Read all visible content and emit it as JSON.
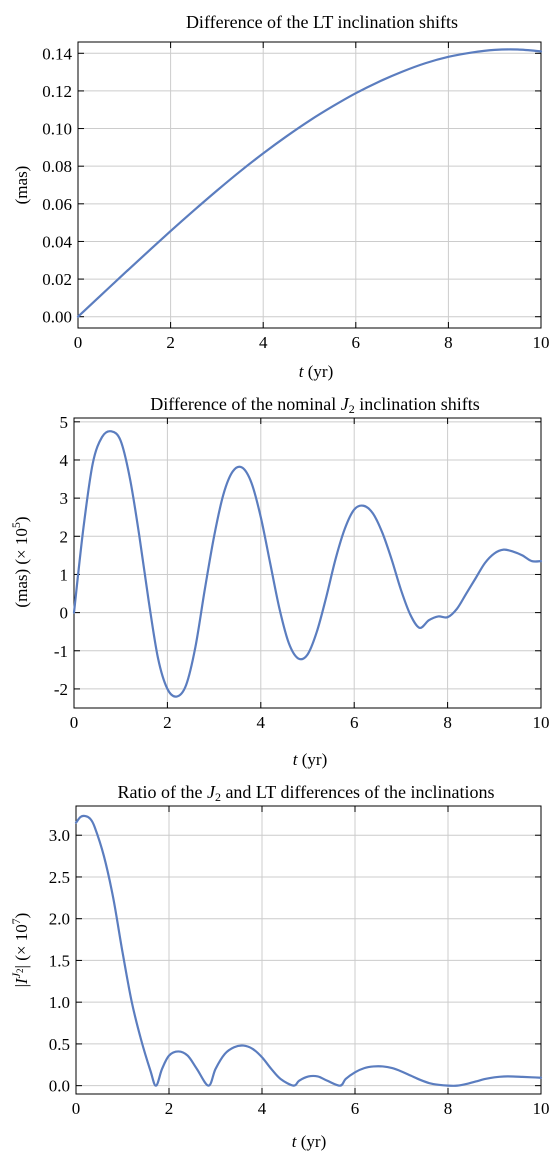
{
  "chart_data": [
    {
      "type": "line",
      "title": "Difference of the LT inclination shifts",
      "xlabel_var": "t",
      "xlabel_unit": " (yr)",
      "ylabel": "(mas)",
      "xlim": [
        0,
        10
      ],
      "ylim": [
        -0.006,
        0.146
      ],
      "xticks": [
        0,
        2,
        4,
        6,
        8,
        10
      ],
      "yticks": [
        0.0,
        0.02,
        0.04,
        0.06,
        0.08,
        0.1,
        0.12,
        0.14
      ],
      "xtick_labels": [
        "0",
        "2",
        "4",
        "6",
        "8",
        "10"
      ],
      "ytick_labels": [
        "0.00",
        "0.02",
        "0.04",
        "0.06",
        "0.08",
        "0.10",
        "0.12",
        "0.14"
      ],
      "grid": true,
      "color": "#5B7DBF",
      "x": [
        0,
        0.5,
        1,
        1.5,
        2,
        2.5,
        3,
        3.5,
        4,
        4.5,
        5,
        5.5,
        6,
        6.5,
        7,
        7.5,
        8,
        8.5,
        9,
        9.5,
        10
      ],
      "y": [
        0.0,
        0.0115,
        0.023,
        0.0343,
        0.0455,
        0.0564,
        0.067,
        0.0772,
        0.0868,
        0.0958,
        0.1042,
        0.1118,
        0.1188,
        0.1249,
        0.1302,
        0.1347,
        0.1381,
        0.1404,
        0.1418,
        0.142,
        0.141
      ]
    },
    {
      "type": "line",
      "title_pre": "Difference of the nominal ",
      "title_var": "J",
      "title_sub": "2",
      "title_post": " inclination shifts",
      "xlabel_var": "t",
      "xlabel_unit": " (yr)",
      "ylabel_pre": "(mas) (× 10",
      "ylabel_sup": "5",
      "ylabel_post": ")",
      "xlim": [
        0,
        10
      ],
      "ylim": [
        -2.5,
        5.1
      ],
      "xticks": [
        0,
        2,
        4,
        6,
        8,
        10
      ],
      "yticks": [
        -2,
        -1,
        0,
        1,
        2,
        3,
        4,
        5
      ],
      "xtick_labels": [
        "0",
        "2",
        "4",
        "6",
        "8",
        "10"
      ],
      "ytick_labels": [
        "-2",
        "-1",
        "0",
        "1",
        "2",
        "3",
        "4",
        "5"
      ],
      "grid": true,
      "color": "#5B7DBF",
      "x": [
        0,
        0.2,
        0.4,
        0.6,
        0.8,
        1.0,
        1.2,
        1.4,
        1.6,
        1.8,
        2.0,
        2.2,
        2.4,
        2.6,
        2.8,
        3.0,
        3.2,
        3.4,
        3.6,
        3.8,
        4.0,
        4.2,
        4.4,
        4.6,
        4.8,
        5.0,
        5.2,
        5.4,
        5.6,
        5.8,
        6.0,
        6.2,
        6.4,
        6.6,
        6.8,
        7.0,
        7.2,
        7.4,
        7.6,
        7.8,
        8.0,
        8.2,
        8.4,
        8.6,
        8.8,
        9.0,
        9.2,
        9.4,
        9.6,
        9.8,
        10.0
      ],
      "y": [
        0.0,
        2.2,
        3.9,
        4.6,
        4.75,
        4.5,
        3.5,
        2.0,
        0.3,
        -1.2,
        -2.0,
        -2.2,
        -1.9,
        -0.9,
        0.6,
        2.0,
        3.1,
        3.7,
        3.8,
        3.4,
        2.5,
        1.3,
        0.1,
        -0.8,
        -1.2,
        -1.1,
        -0.5,
        0.4,
        1.4,
        2.2,
        2.7,
        2.8,
        2.6,
        2.1,
        1.4,
        0.6,
        -0.05,
        -0.4,
        -0.2,
        -0.1,
        -0.12,
        0.1,
        0.5,
        0.9,
        1.3,
        1.55,
        1.65,
        1.6,
        1.5,
        1.35,
        1.35
      ]
    },
    {
      "type": "line",
      "title_pre": "Ratio of the ",
      "title_var": "J",
      "title_sub": "2",
      "title_post": " and LT differences of the inclinations",
      "xlabel_var": "t",
      "xlabel_unit": " (yr)",
      "ylabel_script": "I",
      "ylabel_sup_var": "J",
      "ylabel_sup_sub": "2",
      "ylabel_pre": " (× 10",
      "ylabel_sup": "7",
      "ylabel_post": ")",
      "xlim": [
        0,
        10
      ],
      "ylim": [
        -0.1,
        3.35
      ],
      "xticks": [
        0,
        2,
        4,
        6,
        8,
        10
      ],
      "yticks": [
        0.0,
        0.5,
        1.0,
        1.5,
        2.0,
        2.5,
        3.0
      ],
      "xtick_labels": [
        "0",
        "2",
        "4",
        "6",
        "8",
        "10"
      ],
      "ytick_labels": [
        "0.0",
        "0.5",
        "1.0",
        "1.5",
        "2.0",
        "2.5",
        "3.0"
      ],
      "grid": true,
      "color": "#5B7DBF",
      "x": [
        0,
        0.1,
        0.2,
        0.3,
        0.4,
        0.6,
        0.8,
        1.0,
        1.2,
        1.4,
        1.6,
        1.72,
        1.85,
        2.0,
        2.2,
        2.4,
        2.6,
        2.85,
        3.0,
        3.2,
        3.4,
        3.6,
        3.8,
        4.0,
        4.2,
        4.4,
        4.68,
        4.8,
        5.0,
        5.2,
        5.4,
        5.68,
        5.8,
        6.0,
        6.2,
        6.4,
        6.6,
        6.8,
        7.0,
        7.2,
        7.4,
        7.6,
        7.8,
        8.0,
        8.2,
        8.4,
        8.6,
        8.8,
        9.0,
        9.2,
        9.4,
        9.6,
        9.8,
        10.0
      ],
      "y": [
        3.15,
        3.22,
        3.23,
        3.2,
        3.1,
        2.75,
        2.25,
        1.6,
        1.0,
        0.55,
        0.18,
        0.0,
        0.2,
        0.36,
        0.41,
        0.36,
        0.2,
        0.0,
        0.2,
        0.38,
        0.46,
        0.48,
        0.44,
        0.34,
        0.2,
        0.08,
        0.0,
        0.06,
        0.11,
        0.11,
        0.06,
        0.0,
        0.08,
        0.16,
        0.21,
        0.23,
        0.23,
        0.21,
        0.17,
        0.12,
        0.07,
        0.03,
        0.01,
        0.0,
        0.0,
        0.02,
        0.05,
        0.08,
        0.1,
        0.11,
        0.11,
        0.105,
        0.1,
        0.095
      ]
    }
  ]
}
